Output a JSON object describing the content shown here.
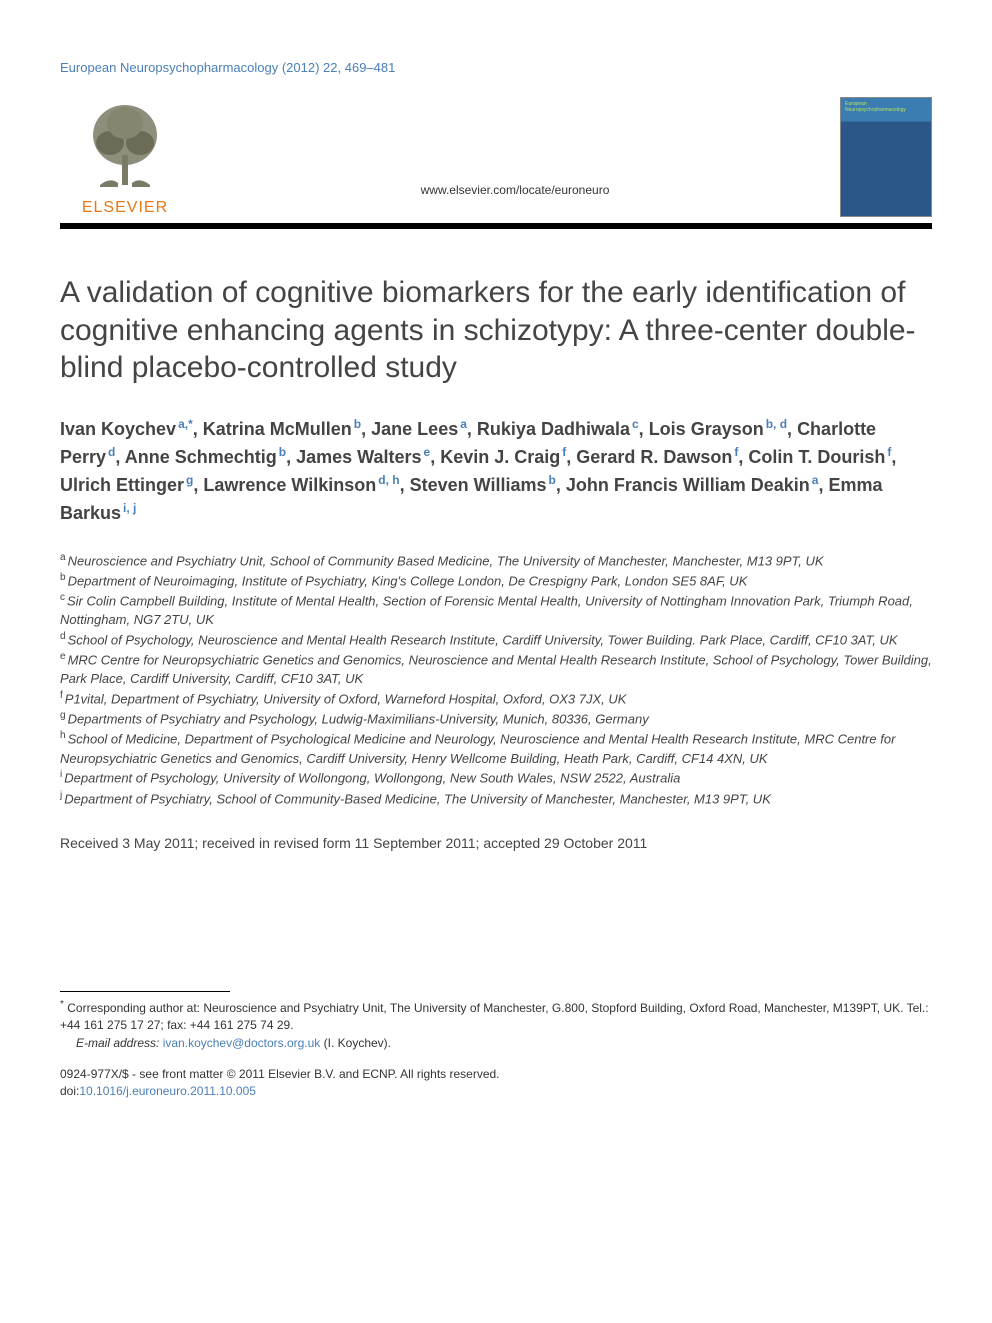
{
  "running_header": "European Neuropsychopharmacology (2012) 22, 469–481",
  "publisher": {
    "name": "ELSEVIER",
    "logo_color": "#e67817",
    "tree_color": "#7a7a66"
  },
  "journal_url": "www.elsevier.com/locate/euroneuro",
  "journal_thumb": {
    "title": "European Neuropsychopharmacology",
    "bg_top": "#3b7db0",
    "bg_main": "#2a5788",
    "title_color": "#b9e05a"
  },
  "rule_color": "#000000",
  "title": "A validation of cognitive biomarkers for the early identification of cognitive enhancing agents in schizotypy: A three-center double-blind placebo-controlled study",
  "title_fontsize": 30,
  "authors_fontsize": 18,
  "authors": [
    {
      "name": "Ivan Koychev",
      "aff": "a,*"
    },
    {
      "name": "Katrina McMullen",
      "aff": "b"
    },
    {
      "name": "Jane Lees",
      "aff": "a"
    },
    {
      "name": "Rukiya Dadhiwala",
      "aff": "c"
    },
    {
      "name": "Lois Grayson",
      "aff": "b, d"
    },
    {
      "name": "Charlotte Perry",
      "aff": "d"
    },
    {
      "name": "Anne Schmechtig",
      "aff": "b"
    },
    {
      "name": "James Walters",
      "aff": "e"
    },
    {
      "name": "Kevin J. Craig",
      "aff": "f"
    },
    {
      "name": "Gerard R. Dawson",
      "aff": "f"
    },
    {
      "name": "Colin T. Dourish",
      "aff": "f"
    },
    {
      "name": "Ulrich Ettinger",
      "aff": "g"
    },
    {
      "name": "Lawrence Wilkinson",
      "aff": "d, h"
    },
    {
      "name": "Steven Williams",
      "aff": "b"
    },
    {
      "name": "John Francis William Deakin",
      "aff": "a"
    },
    {
      "name": "Emma Barkus",
      "aff": "i, j"
    }
  ],
  "affiliations": [
    {
      "key": "a",
      "text": "Neuroscience and Psychiatry Unit, School of Community Based Medicine, The University of Manchester, Manchester, M13 9PT, UK"
    },
    {
      "key": "b",
      "text": "Department of Neuroimaging, Institute of Psychiatry, King's College London, De Crespigny Park, London SE5 8AF, UK"
    },
    {
      "key": "c",
      "text": "Sir Colin Campbell Building, Institute of Mental Health, Section of Forensic Mental Health, University of Nottingham Innovation Park, Triumph Road, Nottingham, NG7 2TU, UK"
    },
    {
      "key": "d",
      "text": "School of Psychology, Neuroscience and Mental Health Research Institute, Cardiff University, Tower Building. Park Place, Cardiff, CF10 3AT, UK"
    },
    {
      "key": "e",
      "text": "MRC Centre for Neuropsychiatric Genetics and Genomics, Neuroscience and Mental Health Research Institute, School of Psychology, Tower Building, Park Place, Cardiff University, Cardiff, CF10 3AT, UK"
    },
    {
      "key": "f",
      "text": "P1vital, Department of Psychiatry, University of Oxford, Warneford Hospital, Oxford, OX3 7JX, UK"
    },
    {
      "key": "g",
      "text": "Departments of Psychiatry and Psychology, Ludwig-Maximilians-University, Munich, 80336, Germany"
    },
    {
      "key": "h",
      "text": "School of Medicine, Department of Psychological Medicine and Neurology, Neuroscience and Mental Health Research Institute, MRC Centre for Neuropsychiatric Genetics and Genomics, Cardiff University, Henry Wellcome Building, Heath Park, Cardiff, CF14 4XN, UK"
    },
    {
      "key": "i",
      "text": "Department of Psychology, University of Wollongong, Wollongong, New South Wales, NSW 2522, Australia"
    },
    {
      "key": "j",
      "text": "Department of Psychiatry, School of Community-Based Medicine, The University of Manchester, Manchester, M13 9PT, UK"
    }
  ],
  "received": "Received 3 May 2011; received in revised form 11 September 2011; accepted 29 October 2011",
  "corresponding": {
    "marker": "*",
    "text": "Corresponding author at: Neuroscience and Psychiatry Unit, The University of Manchester, G.800, Stopford Building, Oxford Road, Manchester, M139PT, UK. Tel.: +44 161 275 17 27; fax: +44 161 275 74 29."
  },
  "email": {
    "label": "E-mail address:",
    "address": "ivan.koychev@doctors.org.uk",
    "tail": "(I. Koychev)."
  },
  "copyright": {
    "line1": "0924-977X/$ - see front matter © 2011 Elsevier B.V. and ECNP. All rights reserved.",
    "doi_label": "doi:",
    "doi": "10.1016/j.euroneuro.2011.10.005"
  },
  "link_color": "#4a7fb8"
}
